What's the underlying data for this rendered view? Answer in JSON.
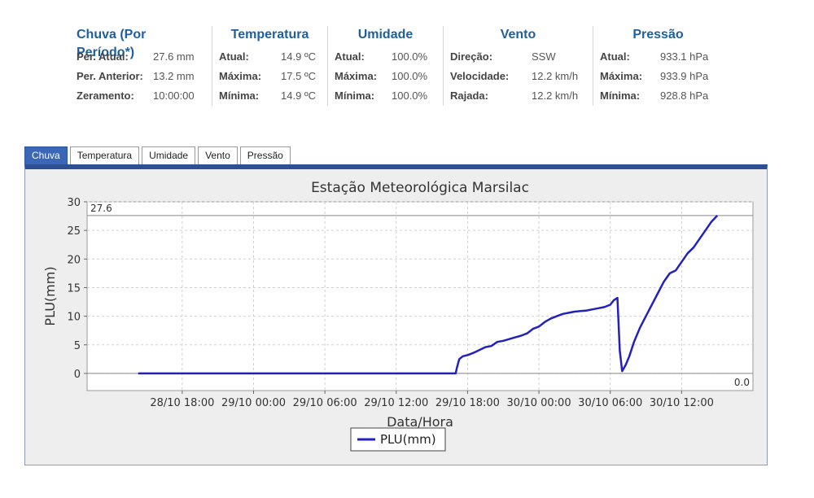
{
  "summary": {
    "chuva": {
      "title": "Chuva (Por Período*)",
      "rows": [
        {
          "label": "Per. Atual:",
          "value": "27.6 mm"
        },
        {
          "label": "Per. Anterior:",
          "value": "13.2 mm"
        },
        {
          "label": "Zeramento:",
          "value": "10:00:00"
        }
      ]
    },
    "temperatura": {
      "title": "Temperatura",
      "rows": [
        {
          "label": "Atual:",
          "value": "14.9 ºC"
        },
        {
          "label": "Máxima:",
          "value": "17.5 ºC"
        },
        {
          "label": "Mínima:",
          "value": "14.9 ºC"
        }
      ]
    },
    "umidade": {
      "title": "Umidade",
      "rows": [
        {
          "label": "Atual:",
          "value": "100.0%"
        },
        {
          "label": "Máxima:",
          "value": "100.0%"
        },
        {
          "label": "Mínima:",
          "value": "100.0%"
        }
      ]
    },
    "vento": {
      "title": "Vento",
      "rows": [
        {
          "label": "Direção:",
          "value": "SSW"
        },
        {
          "label": "Velocidade:",
          "value": "12.2 km/h"
        },
        {
          "label": "Rajada:",
          "value": "12.2 km/h"
        }
      ]
    },
    "pressao": {
      "title": "Pressão",
      "rows": [
        {
          "label": "Atual:",
          "value": "933.1 hPa"
        },
        {
          "label": "Máxima:",
          "value": "933.9 hPa"
        },
        {
          "label": "Mínima:",
          "value": "928.8 hPa"
        }
      ]
    }
  },
  "tabs": [
    {
      "label": "Chuva",
      "active": true
    },
    {
      "label": "Temperatura",
      "active": false
    },
    {
      "label": "Umidade",
      "active": false
    },
    {
      "label": "Vento",
      "active": false
    },
    {
      "label": "Pressão",
      "active": false
    }
  ],
  "chart_data": {
    "type": "line",
    "title": "Estação Meteorológica Marsilac",
    "xlabel": "Data/Hora",
    "ylabel": "PLU(mm)",
    "xlim": [
      -2,
      54
    ],
    "ylim": [
      -3,
      30
    ],
    "x_ticks": [
      {
        "x": 6,
        "label": "28/10 18:00"
      },
      {
        "x": 12,
        "label": "29/10 00:00"
      },
      {
        "x": 18,
        "label": "29/10 06:00"
      },
      {
        "x": 24,
        "label": "29/10 12:00"
      },
      {
        "x": 30,
        "label": "29/10 18:00"
      },
      {
        "x": 36,
        "label": "30/10 00:00"
      },
      {
        "x": 42,
        "label": "30/10 06:00"
      },
      {
        "x": 48,
        "label": "30/10 12:00"
      }
    ],
    "y_ticks": [
      0,
      5,
      10,
      15,
      20,
      25,
      30
    ],
    "markers": [
      {
        "value": 27.6,
        "label": "27.6",
        "position": "top-left"
      },
      {
        "value": 0,
        "label": "0.0",
        "position": "bottom-right"
      }
    ],
    "grid": true,
    "legend": {
      "position": "bottom-center"
    },
    "color": "#2222bb",
    "series": [
      {
        "name": "PLU(mm)",
        "x": [
          2.3,
          10,
          20,
          29.0,
          29.1,
          29.3,
          29.6,
          30.0,
          30.5,
          31.0,
          31.5,
          32.0,
          32.5,
          33.0,
          33.5,
          34.0,
          34.5,
          35.0,
          35.5,
          36.0,
          36.5,
          37.0,
          37.5,
          38.0,
          38.5,
          39.0,
          39.5,
          40.0,
          40.5,
          41.0,
          41.5,
          42.0,
          42.3,
          42.6,
          42.8,
          43.0,
          43.3,
          43.6,
          44.0,
          44.5,
          45.0,
          45.5,
          46.0,
          46.5,
          47.0,
          47.5,
          48.0,
          48.5,
          49.0,
          49.5,
          50.0,
          50.5,
          51.0
        ],
        "y": [
          0,
          0,
          0,
          0,
          1.0,
          2.5,
          3.0,
          3.2,
          3.6,
          4.1,
          4.6,
          4.8,
          5.5,
          5.7,
          6.0,
          6.3,
          6.6,
          7.0,
          7.8,
          8.2,
          9.0,
          9.6,
          10.0,
          10.4,
          10.6,
          10.8,
          10.9,
          11.0,
          11.2,
          11.4,
          11.6,
          12.0,
          12.8,
          13.2,
          4.0,
          0.4,
          1.5,
          3.0,
          5.5,
          8.0,
          10.0,
          12.0,
          14.0,
          16.0,
          17.5,
          18.0,
          19.5,
          21.0,
          22.0,
          23.5,
          25.0,
          26.5,
          27.6
        ]
      }
    ]
  }
}
